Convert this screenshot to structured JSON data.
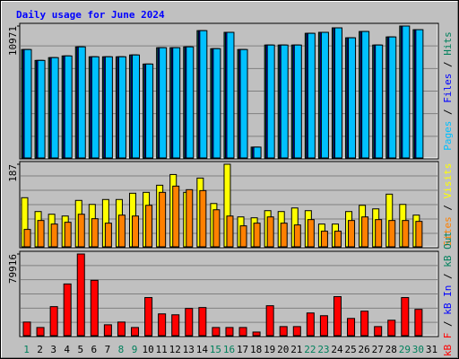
{
  "chart_data": [
    {
      "type": "bar",
      "title": "Daily usage for June 2024",
      "ylim": [
        0,
        10971
      ],
      "yticks": [
        10971
      ],
      "legend_separator": " / ",
      "series": [
        {
          "name": "Pages",
          "color": "#00c0ff",
          "values": [
            9030,
            8130,
            8360,
            8500,
            9250,
            8430,
            8430,
            8430,
            8580,
            7830,
            9180,
            9180,
            9250,
            10590,
            9100,
            10450,
            9030,
            970,
            9400,
            9400,
            9400,
            10370,
            10450,
            10820,
            10000,
            10520,
            9400,
            10070,
            10971,
            10670,
            null
          ]
        },
        {
          "name": "Files",
          "color": "#0000ff",
          "values": [
            9030,
            8130,
            8360,
            8500,
            9250,
            8430,
            8430,
            8430,
            8580,
            7830,
            9180,
            9180,
            9250,
            10590,
            9100,
            10450,
            9030,
            970,
            9400,
            9400,
            9400,
            10370,
            10450,
            10820,
            10000,
            10520,
            9400,
            10070,
            10971,
            10670,
            null
          ]
        },
        {
          "name": "Hits",
          "color": "#00805c",
          "values": [
            9030,
            8130,
            8360,
            8500,
            9250,
            8430,
            8430,
            8430,
            8580,
            7830,
            9180,
            9180,
            9250,
            10590,
            9100,
            10450,
            9030,
            970,
            9400,
            9400,
            9400,
            10370,
            10450,
            10820,
            10000,
            10520,
            9400,
            10070,
            10971,
            10670,
            null
          ]
        }
      ]
    },
    {
      "type": "bar",
      "ylim": [
        0,
        187
      ],
      "yticks": [
        187
      ],
      "legend_separator": " / ",
      "series": [
        {
          "name": "Sites",
          "color": "#ff8000",
          "values": [
            41,
            61,
            53,
            57,
            75,
            65,
            55,
            73,
            71,
            95,
            124,
            138,
            130,
            128,
            85,
            71,
            49,
            55,
            69,
            55,
            51,
            63,
            37,
            37,
            61,
            69,
            63,
            61,
            61,
            59,
            null
          ]
        },
        {
          "name": "Visits",
          "color": "#ffff00",
          "values": [
            112,
            81,
            75,
            71,
            106,
            97,
            108,
            108,
            122,
            124,
            140,
            164,
            124,
            156,
            99,
            187,
            69,
            67,
            83,
            81,
            89,
            83,
            53,
            53,
            81,
            95,
            87,
            120,
            97,
            73,
            null
          ]
        }
      ]
    },
    {
      "type": "bar",
      "ylim": [
        0,
        79916
      ],
      "yticks": [
        79916
      ],
      "legend_separator": " / ",
      "categories": [
        "1",
        "2",
        "3",
        "4",
        "5",
        "6",
        "7",
        "8",
        "9",
        "10",
        "11",
        "12",
        "13",
        "14",
        "15",
        "16",
        "17",
        "18",
        "19",
        "20",
        "21",
        "22",
        "23",
        "24",
        "25",
        "26",
        "27",
        "28",
        "29",
        "30",
        "31"
      ],
      "category_colors": [
        "#00805c",
        "#000000",
        "#000000",
        "#000000",
        "#000000",
        "#000000",
        "#000000",
        "#00805c",
        "#00805c",
        "#000000",
        "#000000",
        "#000000",
        "#000000",
        "#000000",
        "#00805c",
        "#00805c",
        "#000000",
        "#000000",
        "#000000",
        "#000000",
        "#000000",
        "#00805c",
        "#00805c",
        "#000000",
        "#000000",
        "#000000",
        "#000000",
        "#000000",
        "#00805c",
        "#00805c",
        "#000000"
      ],
      "series": [
        {
          "name": "kB F",
          "color": "#ff0000",
          "values": [
            14050,
            8780,
            28970,
            50920,
            79916,
            54440,
            11410,
            14050,
            8780,
            37750,
            21950,
            21070,
            27220,
            28100,
            8780,
            8780,
            8780,
            4390,
            29850,
            9660,
            9660,
            22830,
            20190,
            38630,
            17560,
            24580,
            9660,
            15800,
            37750,
            26340,
            null
          ]
        }
      ],
      "legend_only": [
        {
          "name": "kB In",
          "color": "#0000ff"
        },
        {
          "name": "kB Out",
          "color": "#00805c"
        }
      ]
    }
  ]
}
